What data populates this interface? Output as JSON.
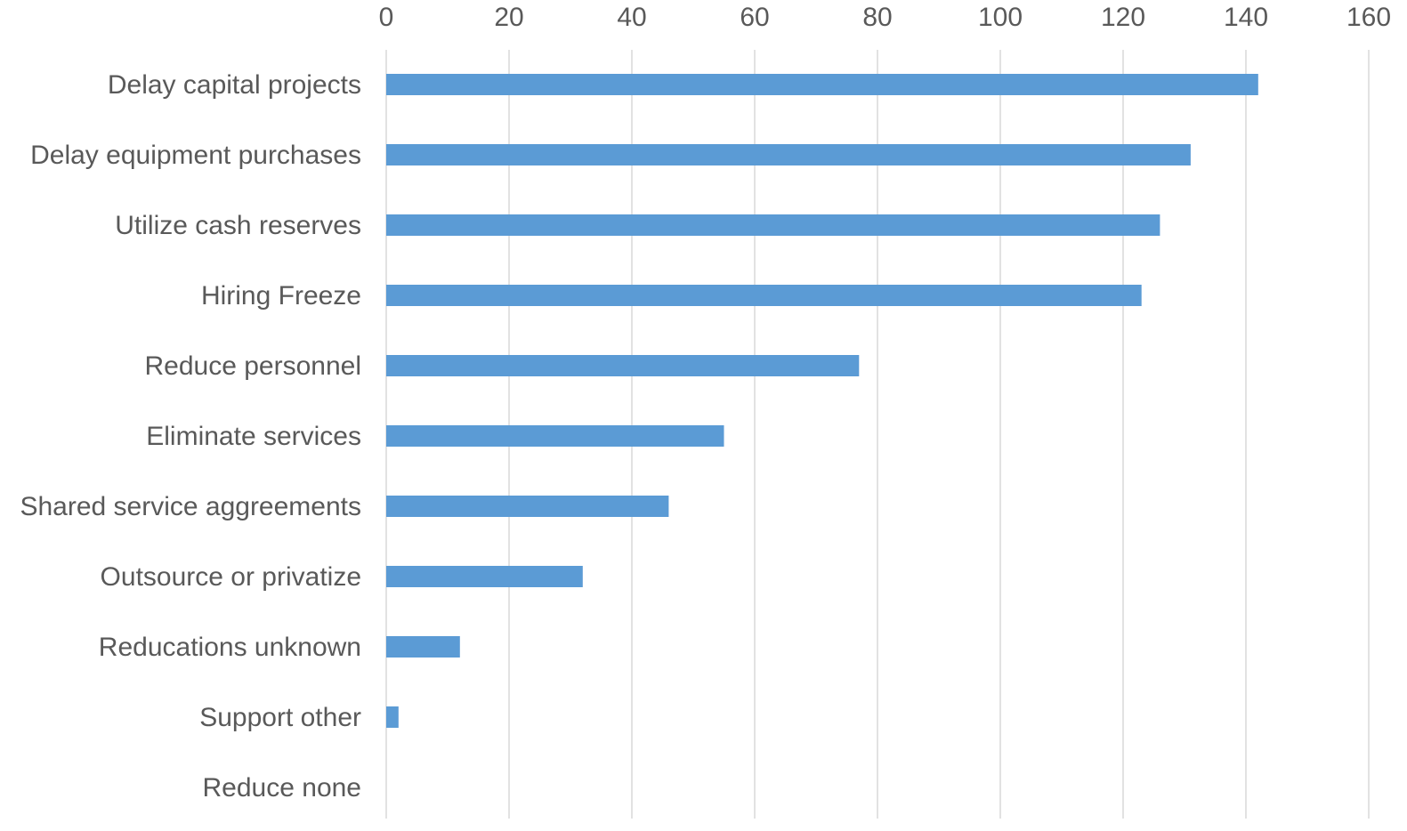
{
  "chart_data": {
    "type": "bar",
    "orientation": "horizontal",
    "categories": [
      "Delay capital projects",
      "Delay equipment purchases",
      "Utilize cash reserves",
      "Hiring Freeze",
      "Reduce personnel",
      "Eliminate services",
      "Shared service aggreements",
      "Outsource or privatize",
      "Reducations unknown",
      "Support other",
      "Reduce none"
    ],
    "values": [
      142,
      131,
      126,
      123,
      77,
      55,
      46,
      32,
      12,
      2,
      0
    ],
    "xlim": [
      0,
      160
    ],
    "x_ticks": [
      0,
      20,
      40,
      60,
      80,
      100,
      120,
      140,
      160
    ],
    "x_tick_labels": [
      "0",
      "20",
      "40",
      "60",
      "80",
      "100",
      "120",
      "140",
      "160"
    ],
    "x_axis_position": "top",
    "grid": "vertical",
    "legend": "none",
    "title": "",
    "xlabel": "",
    "ylabel": "",
    "bar_color": "#5b9bd5",
    "grid_color": "#d9d9d9",
    "text_color": "#595959"
  }
}
